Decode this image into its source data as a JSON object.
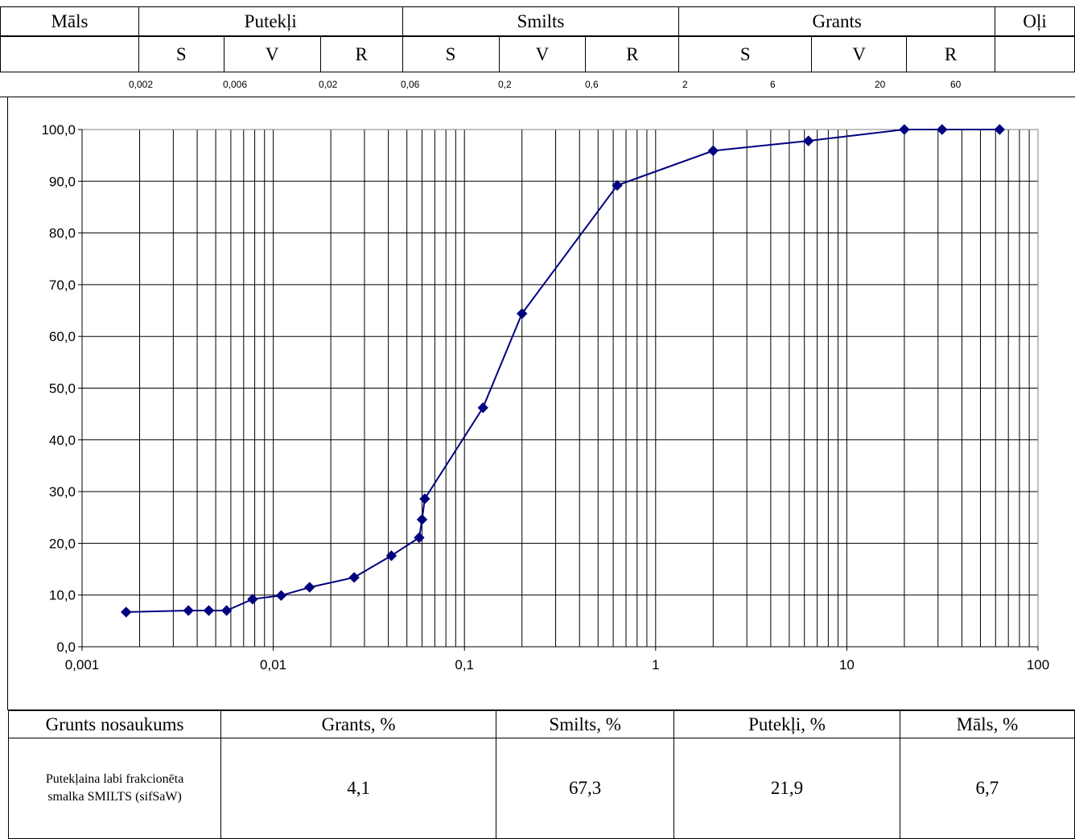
{
  "header": {
    "row1": [
      "Māls",
      "Putekļi",
      "Smilts",
      "Grants",
      "Oļi"
    ],
    "row2": [
      "S",
      "V",
      "R",
      "S",
      "V",
      "R",
      "S",
      "V",
      "R"
    ],
    "sizes": [
      "0,002",
      "0,006",
      "0,02",
      "0,06",
      "0,2",
      "0,6",
      "2",
      "6",
      "20",
      "60"
    ]
  },
  "chart_data": {
    "type": "line",
    "x_scale": "log",
    "xlim": [
      0.001,
      100
    ],
    "ylim": [
      0,
      100
    ],
    "x_ticks": [
      "0,001",
      "0,01",
      "0,1",
      "1",
      "10",
      "100"
    ],
    "y_ticks": [
      "0,0",
      "10,0",
      "20,0",
      "30,0",
      "40,0",
      "50,0",
      "60,0",
      "70,0",
      "80,0",
      "90,0",
      "100,0"
    ],
    "grid": true,
    "color": "#000080",
    "marker": "diamond",
    "series": [
      {
        "x": [
          0.0017,
          0.0036,
          0.0046,
          0.0057,
          0.0078,
          0.011,
          0.0155,
          0.0265,
          0.0415,
          0.058,
          0.06,
          0.062,
          0.125,
          0.2,
          0.63,
          2,
          6.3,
          20,
          31.5,
          63
        ],
        "y": [
          6.7,
          7.0,
          7.0,
          7.0,
          9.2,
          9.9,
          11.5,
          13.4,
          17.6,
          21.1,
          24.6,
          28.6,
          46.2,
          64.4,
          89.2,
          95.9,
          97.8,
          100,
          100,
          100
        ]
      }
    ]
  },
  "summary": {
    "headers": [
      "Grunts nosaukums",
      "Grants, %",
      "Smilts, %",
      "Putekļi, %",
      "Māls, %"
    ],
    "name_line1": "Putekļaina labi frakcionēta",
    "name_line2": "smalka SMILTS (sifSaW)",
    "values": [
      "4,1",
      "67,3",
      "21,9",
      "6,7"
    ]
  }
}
